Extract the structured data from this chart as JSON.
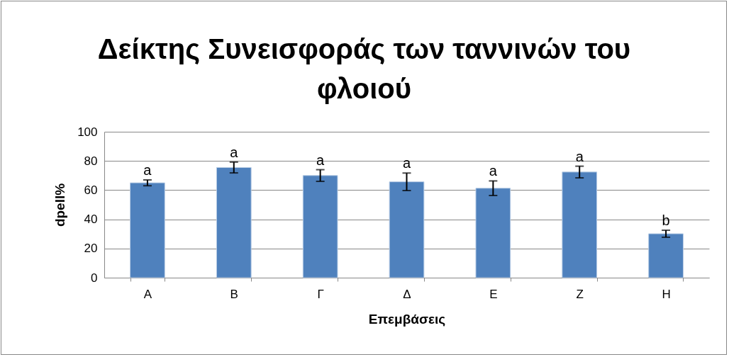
{
  "chart_data": {
    "type": "bar",
    "title": "Δείκτης Συνεισφοράς των ταννινών του φλοιού",
    "xlabel": "Επεμβάσεις",
    "ylabel": "dpell%",
    "categories": [
      "Α",
      "Β",
      "Γ",
      "Δ",
      "Ε",
      "Ζ",
      "Η"
    ],
    "values": [
      65,
      75.5,
      70,
      65.7,
      61.3,
      72.4,
      30.1
    ],
    "errors": [
      2,
      3.7,
      4,
      6,
      5,
      4,
      2.4
    ],
    "color": "#4f81bd",
    "ylim": [
      0,
      100
    ],
    "yticks": [
      0,
      20,
      40,
      60,
      80,
      100
    ],
    "grid": "y",
    "annotations": [
      {
        "text": "a",
        "x": "Α",
        "y": 67
      },
      {
        "text": "a",
        "x": "Β",
        "y": 79.2
      },
      {
        "text": "a",
        "x": "Γ",
        "y": 74
      },
      {
        "text": "a",
        "x": "Δ",
        "y": 71.7
      },
      {
        "text": "a",
        "x": "Ε",
        "y": 66.3
      },
      {
        "text": "a",
        "x": "Ζ",
        "y": 76.4
      },
      {
        "text": "b",
        "x": "Η",
        "y": 32.5
      }
    ]
  }
}
